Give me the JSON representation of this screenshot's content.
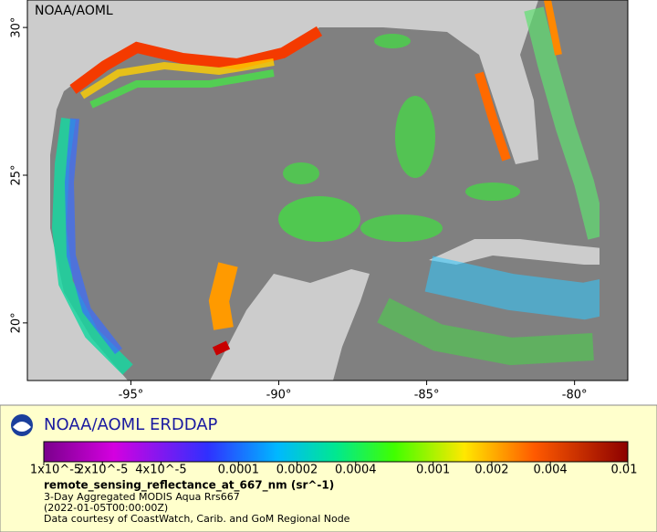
{
  "map": {
    "watermark": "NOAA/AOML",
    "xlim": [
      -98.5,
      -78.2
    ],
    "ylim": [
      18.05,
      30.93
    ],
    "lat_ticks": [
      {
        "value": 30,
        "label": "30°"
      },
      {
        "value": 25,
        "label": "25°"
      },
      {
        "value": 20,
        "label": "20°"
      }
    ],
    "lon_ticks": [
      {
        "value": -95,
        "label": "-95°"
      },
      {
        "value": -90,
        "label": "-90°"
      },
      {
        "value": -85,
        "label": "-85°"
      },
      {
        "value": -80,
        "label": "-80°"
      }
    ]
  },
  "legend": {
    "brand": "NOAA/AOML ERDDAP",
    "log_scale": true,
    "clim": [
      1e-05,
      0.01
    ],
    "colorbar_ticks": [
      {
        "value": 1e-05,
        "label": "1x10^-5"
      },
      {
        "value": 2e-05,
        "label": "2x10^-5"
      },
      {
        "value": 4e-05,
        "label": "4x10^-5"
      },
      {
        "value": 0.0001,
        "label": "0.0001"
      },
      {
        "value": 0.0002,
        "label": "0.0002"
      },
      {
        "value": 0.0004,
        "label": "0.0004"
      },
      {
        "value": 0.001,
        "label": "0.001"
      },
      {
        "value": 0.002,
        "label": "0.002"
      },
      {
        "value": 0.004,
        "label": "0.004"
      },
      {
        "value": 0.01,
        "label": "0.01"
      }
    ],
    "variable": "remote_sensing_reflectance_at_667_nm (sr^-1)",
    "lines": [
      "3-Day Aggregated MODIS Aqua Rrs667",
      "(2022-01-05T00:00:00Z)",
      "Data courtesy of CoastWatch, Carib. and GoM Regional Node"
    ]
  }
}
